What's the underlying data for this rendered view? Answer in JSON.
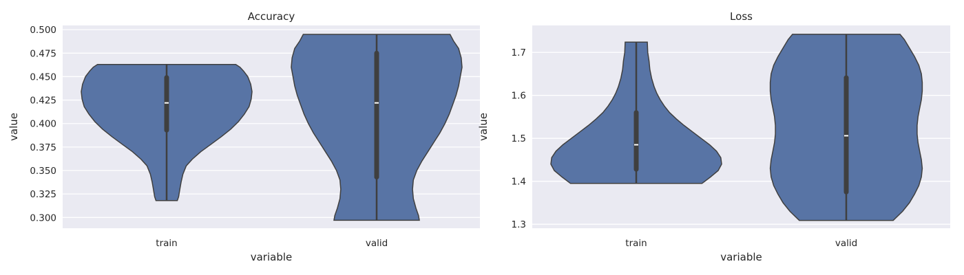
{
  "chart_data": [
    {
      "type": "violin",
      "title": "Accuracy",
      "xlabel": "variable",
      "ylabel": "value",
      "categories": [
        "train",
        "valid"
      ],
      "ylim": [
        0.2885,
        0.5045
      ],
      "yticks": [
        0.3,
        0.325,
        0.35,
        0.375,
        0.4,
        0.425,
        0.45,
        0.475,
        0.5
      ],
      "ytick_labels": [
        "0.300",
        "0.325",
        "0.350",
        "0.375",
        "0.400",
        "0.425",
        "0.450",
        "0.475",
        "0.500"
      ],
      "color": "#5874a5",
      "violins": [
        {
          "name": "train",
          "min": 0.318,
          "max": 0.463,
          "q1": 0.393,
          "median": 0.422,
          "q3": 0.449,
          "density": [
            [
              0.318,
              0.125
            ],
            [
              0.322,
              0.14
            ],
            [
              0.33,
              0.155
            ],
            [
              0.338,
              0.17
            ],
            [
              0.346,
              0.19
            ],
            [
              0.355,
              0.23
            ],
            [
              0.362,
              0.3
            ],
            [
              0.37,
              0.4
            ],
            [
              0.378,
              0.52
            ],
            [
              0.386,
              0.64
            ],
            [
              0.394,
              0.75
            ],
            [
              0.402,
              0.84
            ],
            [
              0.41,
              0.91
            ],
            [
              0.418,
              0.965
            ],
            [
              0.426,
              0.99
            ],
            [
              0.434,
              1.0
            ],
            [
              0.442,
              0.985
            ],
            [
              0.45,
              0.95
            ],
            [
              0.456,
              0.9
            ],
            [
              0.46,
              0.86
            ],
            [
              0.463,
              0.81
            ]
          ]
        },
        {
          "name": "valid",
          "min": 0.297,
          "max": 0.495,
          "q1": 0.343,
          "median": 0.422,
          "q3": 0.475,
          "density": [
            [
              0.297,
              0.5
            ],
            [
              0.302,
              0.49
            ],
            [
              0.31,
              0.46
            ],
            [
              0.32,
              0.43
            ],
            [
              0.33,
              0.42
            ],
            [
              0.34,
              0.43
            ],
            [
              0.35,
              0.47
            ],
            [
              0.36,
              0.53
            ],
            [
              0.37,
              0.6
            ],
            [
              0.38,
              0.67
            ],
            [
              0.39,
              0.74
            ],
            [
              0.4,
              0.8
            ],
            [
              0.41,
              0.85
            ],
            [
              0.42,
              0.89
            ],
            [
              0.43,
              0.93
            ],
            [
              0.44,
              0.96
            ],
            [
              0.45,
              0.98
            ],
            [
              0.46,
              1.0
            ],
            [
              0.47,
              0.99
            ],
            [
              0.48,
              0.96
            ],
            [
              0.488,
              0.9
            ],
            [
              0.495,
              0.86
            ]
          ]
        }
      ]
    },
    {
      "type": "violin",
      "title": "Loss",
      "xlabel": "variable",
      "ylabel": "value",
      "categories": [
        "train",
        "valid"
      ],
      "ylim": [
        1.2907,
        1.7627
      ],
      "yticks": [
        1.3,
        1.4,
        1.5,
        1.6,
        1.7
      ],
      "ytick_labels": [
        "1.3",
        "1.4",
        "1.5",
        "1.6",
        "1.7"
      ],
      "color": "#5874a5",
      "violins": [
        {
          "name": "train",
          "min": 1.395,
          "max": 1.724,
          "q1": 1.428,
          "median": 1.485,
          "q3": 1.56,
          "density": [
            [
              1.395,
              0.77
            ],
            [
              1.41,
              0.87
            ],
            [
              1.425,
              0.96
            ],
            [
              1.44,
              1.0
            ],
            [
              1.455,
              0.99
            ],
            [
              1.47,
              0.94
            ],
            [
              1.485,
              0.86
            ],
            [
              1.5,
              0.76
            ],
            [
              1.515,
              0.66
            ],
            [
              1.53,
              0.56
            ],
            [
              1.545,
              0.47
            ],
            [
              1.56,
              0.39
            ],
            [
              1.575,
              0.33
            ],
            [
              1.59,
              0.28
            ],
            [
              1.605,
              0.24
            ],
            [
              1.62,
              0.21
            ],
            [
              1.64,
              0.18
            ],
            [
              1.66,
              0.16
            ],
            [
              1.68,
              0.15
            ],
            [
              1.7,
              0.135
            ],
            [
              1.724,
              0.13
            ]
          ]
        },
        {
          "name": "valid",
          "min": 1.309,
          "max": 1.742,
          "q1": 1.375,
          "median": 1.506,
          "q3": 1.641,
          "density": [
            [
              1.309,
              0.55
            ],
            [
              1.33,
              0.66
            ],
            [
              1.35,
              0.74
            ],
            [
              1.37,
              0.8
            ],
            [
              1.39,
              0.85
            ],
            [
              1.41,
              0.88
            ],
            [
              1.43,
              0.89
            ],
            [
              1.45,
              0.88
            ],
            [
              1.47,
              0.86
            ],
            [
              1.49,
              0.84
            ],
            [
              1.51,
              0.83
            ],
            [
              1.53,
              0.83
            ],
            [
              1.55,
              0.84
            ],
            [
              1.57,
              0.86
            ],
            [
              1.59,
              0.88
            ],
            [
              1.61,
              0.89
            ],
            [
              1.63,
              0.89
            ],
            [
              1.65,
              0.88
            ],
            [
              1.67,
              0.85
            ],
            [
              1.69,
              0.8
            ],
            [
              1.71,
              0.74
            ],
            [
              1.73,
              0.68
            ],
            [
              1.742,
              0.63
            ]
          ]
        }
      ]
    }
  ]
}
